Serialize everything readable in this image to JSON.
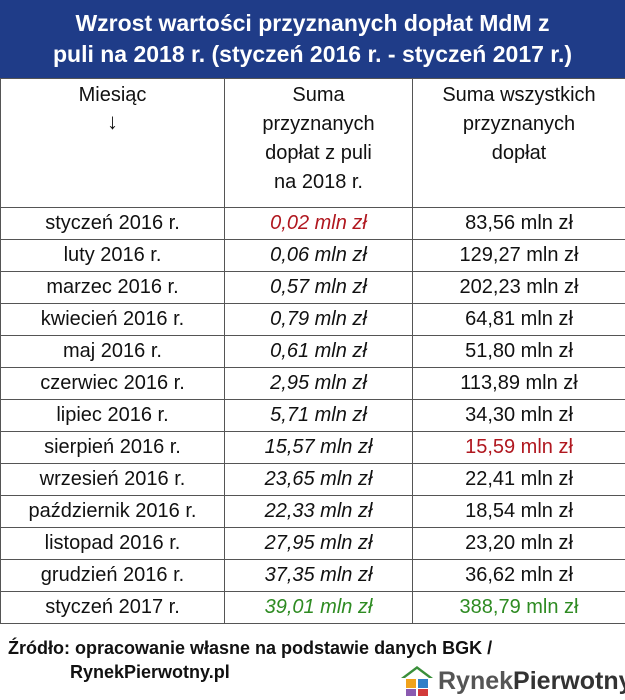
{
  "title": {
    "line1": "Wzrost wartości przyznanych dopłat MdM z",
    "line2": "puli na 2018 r. (styczeń 2016 r. - styczeń 2017 r.)"
  },
  "table": {
    "headers": {
      "col1": "Miesiąc",
      "col1_arrow": "↓",
      "col2_lines": [
        "Suma",
        "przyznanych",
        "dopłat z puli",
        "na 2018 r."
      ],
      "col3_lines": [
        "Suma wszystkich",
        "przyznanych",
        "dopłat"
      ]
    },
    "rows": [
      {
        "month": "styczeń 2016 r.",
        "pool": "0,02 mln zł",
        "total": "83,56 mln zł"
      },
      {
        "month": "luty 2016 r.",
        "pool": "0,06 mln zł",
        "total": "129,27 mln zł"
      },
      {
        "month": "marzec 2016 r.",
        "pool": "0,57 mln zł",
        "total": "202,23 mln zł"
      },
      {
        "month": "kwiecień 2016 r.",
        "pool": "0,79 mln zł",
        "total": "64,81 mln zł"
      },
      {
        "month": "maj 2016 r.",
        "pool": "0,61 mln zł",
        "total": "51,80 mln zł"
      },
      {
        "month": "czerwiec 2016 r.",
        "pool": "2,95 mln zł",
        "total": "113,89 mln zł"
      },
      {
        "month": "lipiec 2016 r.",
        "pool": "5,71 mln zł",
        "total": "34,30 mln zł"
      },
      {
        "month": "sierpień 2016 r.",
        "pool": "15,57 mln zł",
        "total": "15,59 mln zł"
      },
      {
        "month": "wrzesień 2016 r.",
        "pool": "23,65 mln zł",
        "total": "22,41 mln zł"
      },
      {
        "month": "październik 2016 r.",
        "pool": "22,33 mln zł",
        "total": "18,54 mln zł"
      },
      {
        "month": "listopad 2016 r.",
        "pool": "27,95 mln zł",
        "total": "23,20 mln zł"
      },
      {
        "month": "grudzień 2016 r.",
        "pool": "37,35 mln zł",
        "total": "36,62 mln zł"
      },
      {
        "month": "styczeń 2017 r.",
        "pool": "39,01 mln zł",
        "total": "388,79 mln zł"
      }
    ]
  },
  "source": {
    "line1": "Źródło: opracowanie własne na podstawie danych BGK /",
    "line2": "RynekPierwotny.pl"
  },
  "logo": {
    "part1": "Rynek",
    "part2": "Pierwotny",
    "icon": "house-logo-icon"
  },
  "colors": {
    "title_bg": "#1f3c88",
    "highlight_red": "#b0171f",
    "highlight_green": "#2e8b22"
  }
}
